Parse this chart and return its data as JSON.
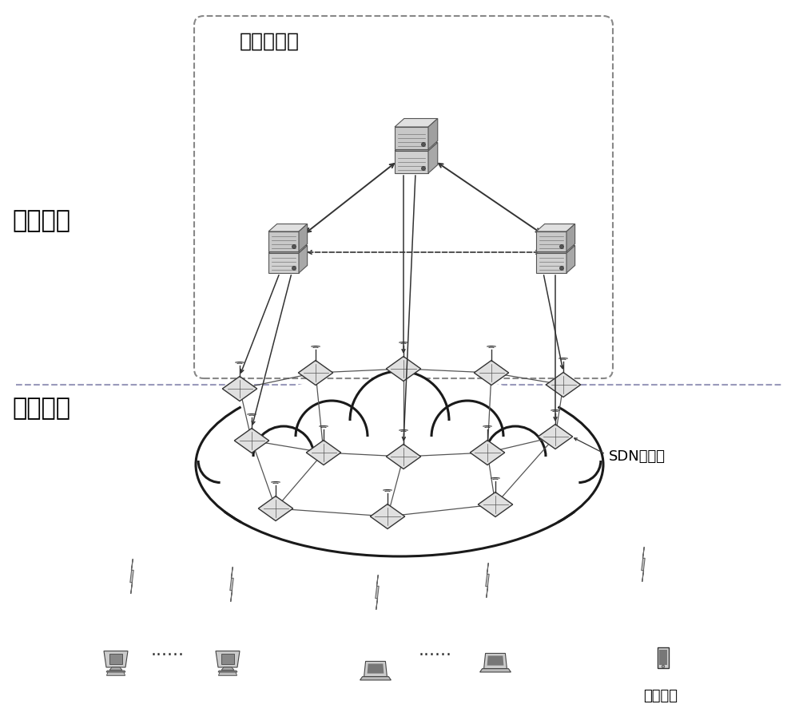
{
  "bg_color": "#ffffff",
  "control_plane_label": "控制平面",
  "data_plane_label": "数据平面",
  "management_controller_label": "管理控制器",
  "sdn_switch_label": "SDN交换机",
  "mobile_terminal_label": "移动终端",
  "dots": "......",
  "font_size_large": 20,
  "font_size_medium": 14,
  "font_size_small": 12
}
